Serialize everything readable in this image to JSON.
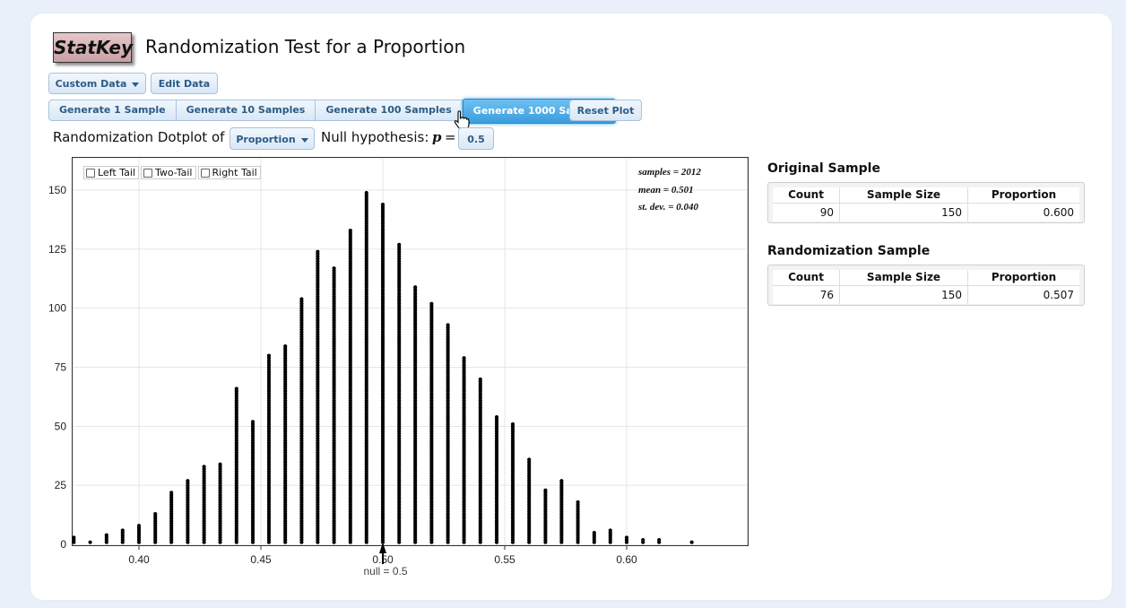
{
  "app": {
    "logo": "StatKey",
    "title": "Randomization Test for a Proportion"
  },
  "toolbar": {
    "custom_data": "Custom Data",
    "edit_data": "Edit Data"
  },
  "generate": {
    "one": "Generate 1 Sample",
    "ten": "Generate 10 Samples",
    "hundred": "Generate 100 Samples",
    "thousand": "Generate 1000 Samples",
    "reset": "Reset Plot"
  },
  "controls": {
    "dotplot_label": "Randomization Dotplot of",
    "statistic": "Proportion",
    "null_label": "Null hypothesis:",
    "p_symbol": "p",
    "equals": "=",
    "null_value": "0.5"
  },
  "tails": {
    "left": "Left Tail",
    "two": "Two-Tail",
    "right": "Right Tail"
  },
  "stats": {
    "samples": "samples = 2012",
    "mean": "mean = 0.501",
    "sd": "st. dev. = 0.040"
  },
  "original": {
    "title": "Original Sample",
    "headers": [
      "Count",
      "Sample Size",
      "Proportion"
    ],
    "row": [
      "90",
      "150",
      "0.600"
    ]
  },
  "randomization": {
    "title": "Randomization Sample",
    "headers": [
      "Count",
      "Sample Size",
      "Proportion"
    ],
    "row": [
      "76",
      "150",
      "0.507"
    ]
  },
  "icons": {
    "cursor": "hand-pointer-icon",
    "caret": "chevron-down-icon"
  },
  "chart_data": {
    "type": "scatter",
    "title": "",
    "xlim": [
      0.38,
      0.645
    ],
    "ylim": [
      0,
      160
    ],
    "xticks": [
      0.4,
      0.45,
      0.5,
      0.55,
      0.6
    ],
    "xtick_labels": [
      "0.40",
      "0.45",
      "0.50",
      "0.55",
      "0.60"
    ],
    "yticks": [
      0,
      25,
      50,
      75,
      100,
      125,
      150
    ],
    "null_label": "null = 0.5",
    "x": [
      0.3733,
      0.38,
      0.3867,
      0.3933,
      0.4,
      0.4067,
      0.4133,
      0.42,
      0.4267,
      0.4333,
      0.44,
      0.4467,
      0.4533,
      0.46,
      0.4667,
      0.4733,
      0.48,
      0.4867,
      0.4933,
      0.5,
      0.5067,
      0.5133,
      0.52,
      0.5267,
      0.5333,
      0.54,
      0.5467,
      0.5533,
      0.56,
      0.5667,
      0.5733,
      0.58,
      0.5867,
      0.5933,
      0.6,
      0.6067,
      0.6133,
      0.6267
    ],
    "counts": [
      3,
      1,
      4,
      6,
      8,
      13,
      22,
      27,
      33,
      34,
      66,
      52,
      80,
      84,
      104,
      124,
      117,
      133,
      149,
      144,
      127,
      109,
      102,
      93,
      79,
      70,
      54,
      51,
      36,
      23,
      27,
      18,
      5,
      6,
      3,
      2,
      2,
      1
    ]
  }
}
